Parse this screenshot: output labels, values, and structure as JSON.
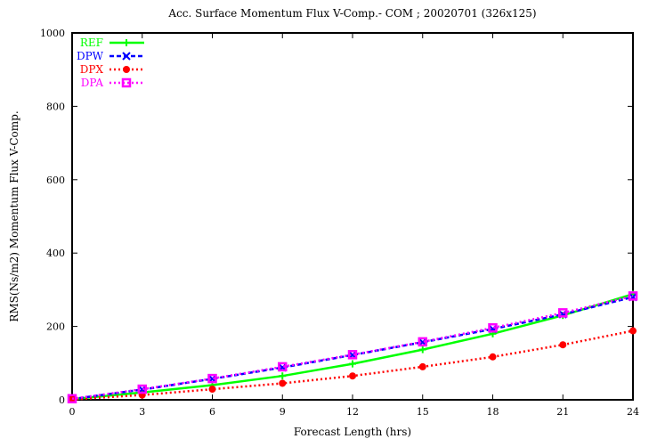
{
  "chart_data": {
    "type": "line",
    "title": "Acc. Surface Momentum Flux V-Comp.- COM ; 20020701 (326x125)",
    "xlabel": "Forecast Length (hrs)",
    "ylabel": "RMS(Ns/m2) Momentum Flux V-Comp.",
    "xlim": [
      0,
      24
    ],
    "ylim": [
      0,
      1000
    ],
    "x_ticks": [
      "0",
      "3",
      "6",
      "9",
      "12",
      "15",
      "18",
      "21",
      "24"
    ],
    "y_ticks": [
      "0",
      "200",
      "400",
      "600",
      "800",
      "1000"
    ],
    "grid": false,
    "legend_position": "top-left",
    "x": [
      0,
      3,
      6,
      9,
      12,
      15,
      18,
      21,
      24
    ],
    "series": [
      {
        "name": "REF",
        "color": "#00ff00",
        "dash": "solid",
        "marker": "plus",
        "values": [
          2,
          20,
          40,
          65,
          98,
          137,
          180,
          230,
          288
        ]
      },
      {
        "name": "DPW",
        "color": "#0000ff",
        "dash": "dashed",
        "marker": "cross",
        "values": [
          2,
          28,
          57,
          88,
          122,
          157,
          193,
          233,
          280
        ]
      },
      {
        "name": "DPX",
        "color": "#ff0000",
        "dash": "dotted",
        "marker": "filled-circle",
        "values": [
          1,
          13,
          29,
          45,
          65,
          90,
          117,
          150,
          188
        ]
      },
      {
        "name": "DPA",
        "color": "#ff00ff",
        "dash": "dotted",
        "marker": "open-square",
        "values": [
          3,
          29,
          58,
          90,
          123,
          158,
          196,
          237,
          283
        ]
      }
    ]
  }
}
